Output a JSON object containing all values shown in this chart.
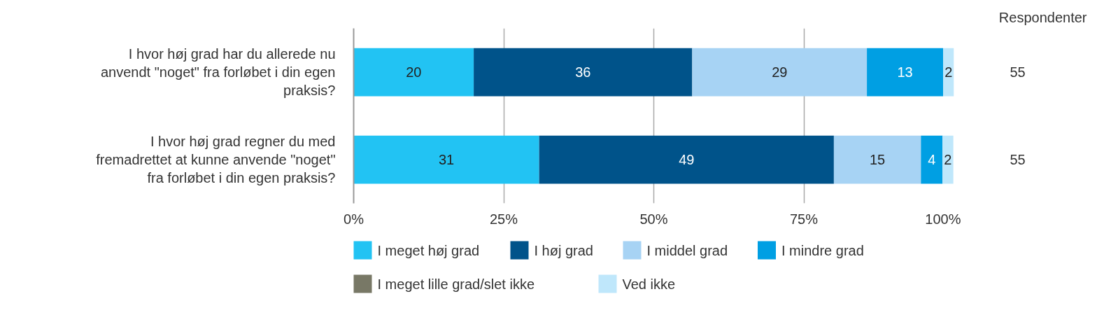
{
  "chart_data": {
    "type": "bar",
    "orientation": "horizontal",
    "stacked": true,
    "categories": [
      "I hvor høj grad har du allerede nu anvendt \"noget\" fra forløbet i din egen praksis?",
      "I hvor høj grad regner du med fremadrettet at kunne anvende \"noget\" fra forløbet i din egen praksis?"
    ],
    "series": [
      {
        "name": "I meget høj grad",
        "color": "#22c3f3",
        "values": [
          20,
          30.9
        ],
        "value_labels": [
          "20",
          "31"
        ]
      },
      {
        "name": "I høj grad",
        "color": "#00538a",
        "values": [
          36.4,
          49.1
        ],
        "value_labels": [
          "36",
          "49"
        ]
      },
      {
        "name": "I middel grad",
        "color": "#a7d3f4",
        "values": [
          29.1,
          14.5
        ],
        "value_labels": [
          "29",
          "15"
        ]
      },
      {
        "name": "I mindre grad",
        "color": "#009fe3",
        "values": [
          12.7,
          3.6
        ],
        "value_labels": [
          "13",
          "4"
        ]
      },
      {
        "name": "I meget lille grad/slet ikke",
        "color": "#787866",
        "values": [
          0,
          0
        ],
        "value_labels": [
          null,
          null
        ]
      },
      {
        "name": "Ved ikke",
        "color": "#bfe7fb",
        "values": [
          1.8,
          1.8
        ],
        "value_labels": [
          "2",
          "2"
        ]
      }
    ],
    "xlim": [
      0,
      100
    ],
    "xticks": [
      {
        "value": 0,
        "label": "0%"
      },
      {
        "value": 25,
        "label": "25%"
      },
      {
        "value": 50,
        "label": "50%"
      },
      {
        "value": 75,
        "label": "75%"
      },
      {
        "value": 100,
        "label": "100%"
      }
    ],
    "grid": "x",
    "legend": "bottom",
    "annotations": [
      "Respondenter",
      "55",
      "55"
    ]
  }
}
